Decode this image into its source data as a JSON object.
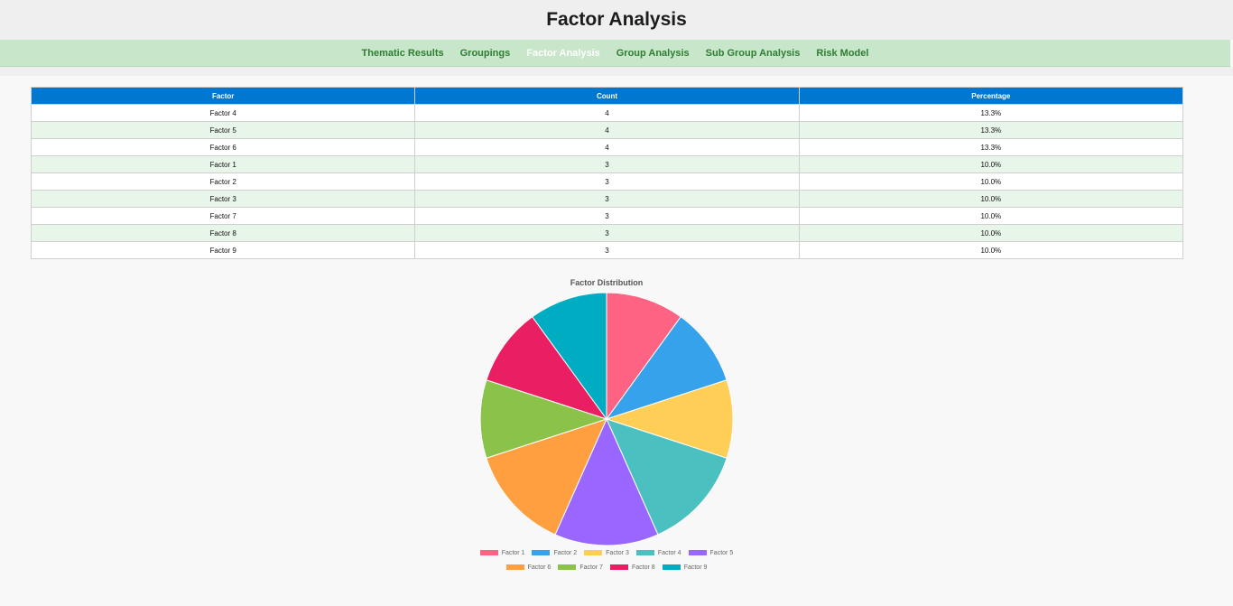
{
  "header": {
    "title": "Factor Analysis"
  },
  "nav": {
    "items": [
      {
        "label": "Thematic Results",
        "active": false
      },
      {
        "label": "Groupings",
        "active": false
      },
      {
        "label": "Factor Analysis",
        "active": true
      },
      {
        "label": "Group Analysis",
        "active": false
      },
      {
        "label": "Sub Group Analysis",
        "active": false
      },
      {
        "label": "Risk Model",
        "active": false
      }
    ]
  },
  "table": {
    "headers": [
      "Factor",
      "Count",
      "Percentage"
    ],
    "rows": [
      [
        "Factor 4",
        "4",
        "13.3%"
      ],
      [
        "Factor 5",
        "4",
        "13.3%"
      ],
      [
        "Factor 6",
        "4",
        "13.3%"
      ],
      [
        "Factor 1",
        "3",
        "10.0%"
      ],
      [
        "Factor 2",
        "3",
        "10.0%"
      ],
      [
        "Factor 3",
        "3",
        "10.0%"
      ],
      [
        "Factor 7",
        "3",
        "10.0%"
      ],
      [
        "Factor 8",
        "3",
        "10.0%"
      ],
      [
        "Factor 9",
        "3",
        "10.0%"
      ]
    ]
  },
  "chart_data": {
    "type": "pie",
    "title": "Factor Distribution",
    "categories": [
      "Factor 1",
      "Factor 2",
      "Factor 3",
      "Factor 4",
      "Factor 5",
      "Factor 6",
      "Factor 7",
      "Factor 8",
      "Factor 9"
    ],
    "values": [
      3,
      3,
      3,
      4,
      4,
      4,
      3,
      3,
      3
    ],
    "colors": [
      "#ff6384",
      "#36a2eb",
      "#ffce56",
      "#4bc0c0",
      "#9966ff",
      "#ff9f40",
      "#8bc34a",
      "#e91e63",
      "#00acc1"
    ],
    "legend": "bottom"
  }
}
